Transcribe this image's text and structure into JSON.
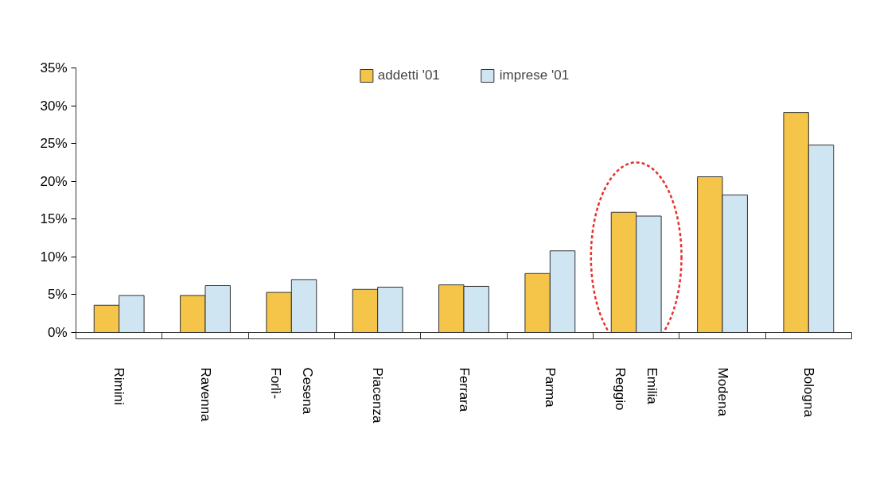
{
  "chart_data": {
    "type": "bar",
    "categories": [
      "Rimini",
      "Ravenna",
      "Forlì-\nCesena",
      "Piacenza",
      "Ferrara",
      "Parma",
      "Reggio\nEmilia",
      "Modena",
      "Bologna"
    ],
    "series": [
      {
        "name": "addetti '01",
        "color": "#f5c54a",
        "values": [
          3.6,
          4.9,
          5.3,
          5.7,
          6.3,
          7.8,
          15.9,
          20.6,
          29.1
        ]
      },
      {
        "name": "imprese '01",
        "color": "#cfe5f2",
        "values": [
          4.9,
          6.2,
          7.0,
          6.0,
          6.1,
          10.8,
          15.4,
          18.2,
          24.8
        ]
      }
    ],
    "ylim": [
      0,
      35
    ],
    "yticks": [
      {
        "value": 0,
        "label": "0%"
      },
      {
        "value": 5,
        "label": "5%"
      },
      {
        "value": 10,
        "label": "10%"
      },
      {
        "value": 15,
        "label": "15%"
      },
      {
        "value": 20,
        "label": "20%"
      },
      {
        "value": 25,
        "label": "25%"
      },
      {
        "value": 30,
        "label": "30%"
      },
      {
        "value": 35,
        "label": "35%"
      }
    ],
    "grid": false,
    "legend": "top"
  }
}
